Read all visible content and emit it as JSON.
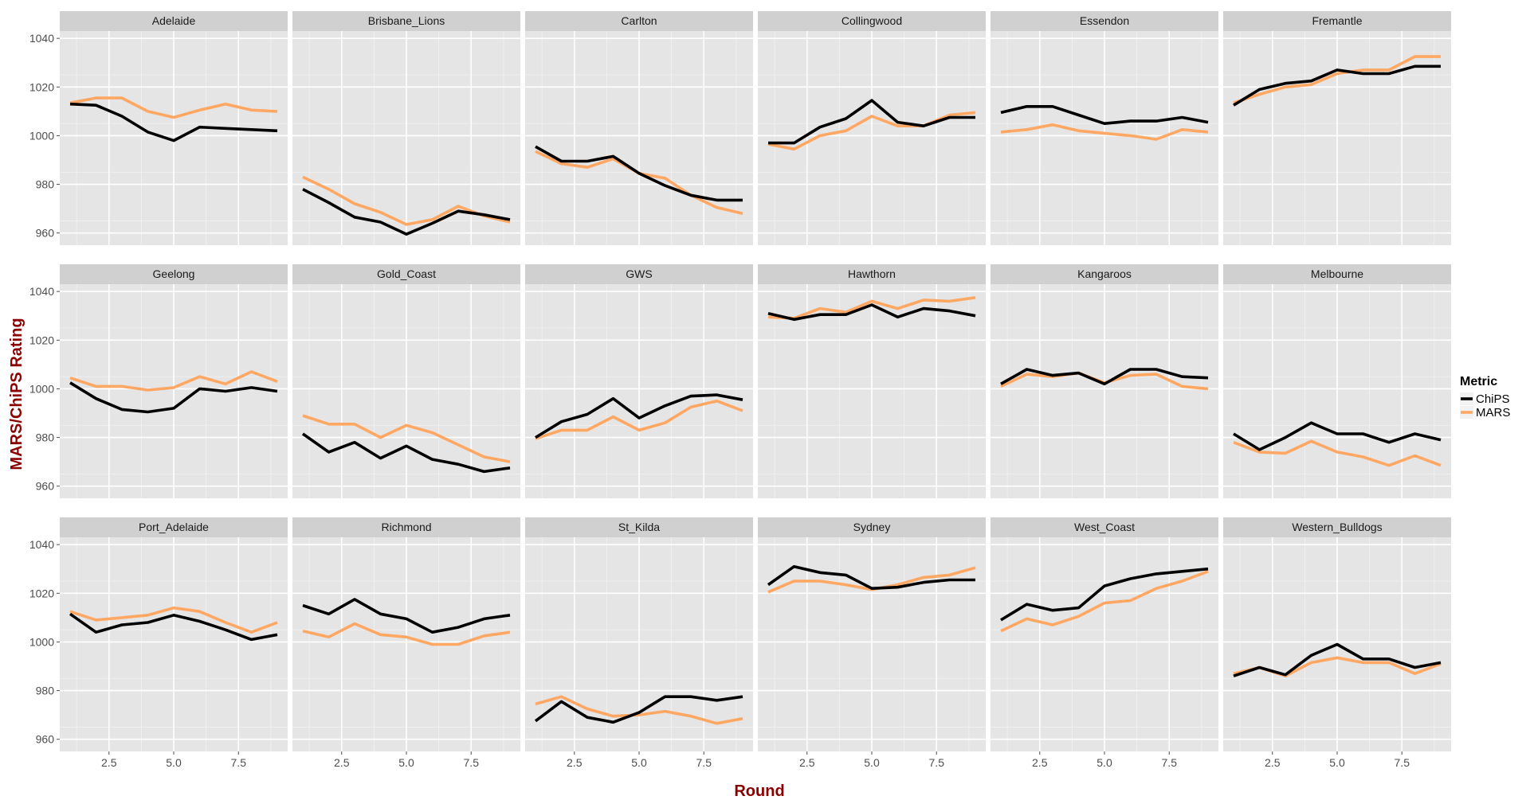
{
  "chart_data": {
    "type": "line",
    "xlabel": "Round",
    "ylabel": "MARS/ChiPS Rating",
    "x": [
      1,
      2,
      3,
      4,
      5,
      6,
      7,
      8,
      9
    ],
    "xticks": [
      "2.5",
      "5.0",
      "7.5"
    ],
    "xtick_values": [
      2.5,
      5.0,
      7.5
    ],
    "yticks": [
      "960",
      "980",
      "1000",
      "1020",
      "1040"
    ],
    "ytick_values": [
      960,
      980,
      1000,
      1020,
      1040
    ],
    "ylim": [
      955,
      1043
    ],
    "xlim": [
      0.6,
      9.4
    ],
    "grid": true,
    "legend": {
      "title": "Metric",
      "placement": "right",
      "entries": [
        {
          "name": "ChiPS",
          "color": "#000000"
        },
        {
          "name": "MARS",
          "color": "#ffa763"
        }
      ]
    },
    "colors": {
      "ChiPS": "#000000",
      "MARS": "#ffa763",
      "panel_bg": "#e5e5e5",
      "strip_bg": "#d0d0d0",
      "axis_title": "#8b0000"
    },
    "panels": [
      {
        "team": "Adelaide",
        "ChiPS": [
          1013,
          1012.5,
          1008,
          1001.5,
          998,
          1003.5,
          1003,
          1002.5,
          1002
        ],
        "MARS": [
          1013.5,
          1015.5,
          1015.5,
          1010,
          1007.5,
          1010.5,
          1013,
          1010.5,
          1010
        ]
      },
      {
        "team": "Brisbane_Lions",
        "ChiPS": [
          978,
          972.5,
          966.5,
          964.5,
          959.5,
          964,
          969,
          967.5,
          965.5
        ],
        "MARS": [
          983,
          978,
          972,
          968.5,
          963.5,
          965.5,
          971,
          967,
          964.5
        ]
      },
      {
        "team": "Carlton",
        "ChiPS": [
          995.5,
          989.5,
          989.5,
          991.5,
          984.5,
          979.5,
          975.5,
          973.5,
          973.5
        ],
        "MARS": [
          993.5,
          988.5,
          987,
          990.5,
          984.5,
          982.5,
          975.5,
          970.5,
          968
        ]
      },
      {
        "team": "Collingwood",
        "ChiPS": [
          997,
          997,
          1003.5,
          1007,
          1014.5,
          1005.5,
          1004,
          1007.5,
          1007.5
        ],
        "MARS": [
          996.5,
          994.5,
          1000,
          1002,
          1008,
          1004,
          1004,
          1008.5,
          1009.5
        ]
      },
      {
        "team": "Essendon",
        "ChiPS": [
          1009.5,
          1012,
          1012,
          1008.5,
          1005,
          1006,
          1006,
          1007.5,
          1005.5
        ],
        "MARS": [
          1001.5,
          1002.5,
          1004.5,
          1002,
          1001,
          1000,
          998.5,
          1002.5,
          1001.5
        ]
      },
      {
        "team": "Fremantle",
        "ChiPS": [
          1012.5,
          1019,
          1021.5,
          1022.5,
          1027,
          1025.5,
          1025.5,
          1028.5,
          1028.5
        ],
        "MARS": [
          1013.5,
          1017,
          1020,
          1021,
          1025.5,
          1027,
          1027,
          1032.5,
          1032.5
        ]
      },
      {
        "team": "Geelong",
        "ChiPS": [
          1002.5,
          996,
          991.5,
          990.5,
          992,
          1000,
          999,
          1000.5,
          999
        ],
        "MARS": [
          1004.5,
          1001,
          1001,
          999.5,
          1000.5,
          1005,
          1002,
          1007,
          1003
        ]
      },
      {
        "team": "Gold_Coast",
        "ChiPS": [
          981.5,
          974,
          978,
          971.5,
          976.5,
          971,
          969,
          966,
          967.5
        ],
        "MARS": [
          989,
          985.5,
          985.5,
          980,
          985,
          982,
          977,
          972,
          970
        ]
      },
      {
        "team": "GWS",
        "ChiPS": [
          980,
          986.5,
          989.5,
          996,
          988,
          993,
          997,
          997.5,
          995.5
        ],
        "MARS": [
          979.5,
          983,
          983,
          988.5,
          983,
          986,
          992.5,
          995,
          991
        ]
      },
      {
        "team": "Hawthorn",
        "ChiPS": [
          1031,
          1028.5,
          1030.5,
          1030.5,
          1034.5,
          1029.5,
          1033,
          1032,
          1030
        ],
        "MARS": [
          1029.5,
          1029,
          1033,
          1031.5,
          1036,
          1033,
          1036.5,
          1036,
          1037.5
        ]
      },
      {
        "team": "Kangaroos",
        "ChiPS": [
          1002,
          1008,
          1005.5,
          1006.5,
          1002,
          1008,
          1008,
          1005,
          1004.5
        ],
        "MARS": [
          1001,
          1006,
          1005,
          1006.5,
          1002.5,
          1005.5,
          1006,
          1001,
          1000
        ]
      },
      {
        "team": "Melbourne",
        "ChiPS": [
          981.5,
          975,
          980,
          986,
          981.5,
          981.5,
          978,
          981.5,
          979
        ],
        "MARS": [
          978,
          974,
          973.5,
          978.5,
          974,
          972,
          968.5,
          972.5,
          968.5
        ]
      },
      {
        "team": "Port_Adelaide",
        "ChiPS": [
          1011.5,
          1004,
          1007,
          1008,
          1011,
          1008.5,
          1005,
          1001,
          1003
        ],
        "MARS": [
          1012.5,
          1009,
          1010,
          1011,
          1014,
          1012.5,
          1008,
          1004,
          1008
        ]
      },
      {
        "team": "Richmond",
        "ChiPS": [
          1015,
          1011.5,
          1017.5,
          1011.5,
          1009.5,
          1004,
          1006,
          1009.5,
          1011
        ],
        "MARS": [
          1004.5,
          1002,
          1007.5,
          1003,
          1002,
          999,
          999,
          1002.5,
          1004
        ]
      },
      {
        "team": "St_Kilda",
        "ChiPS": [
          967.5,
          975.5,
          969,
          967,
          971,
          977.5,
          977.5,
          976,
          977.5
        ],
        "MARS": [
          974.5,
          977.5,
          972.5,
          969.5,
          970,
          971.5,
          969.5,
          966.5,
          968.5
        ]
      },
      {
        "team": "Sydney",
        "ChiPS": [
          1023.5,
          1031,
          1028.5,
          1027.5,
          1022,
          1022.5,
          1024.5,
          1025.5,
          1025.5
        ],
        "MARS": [
          1020.5,
          1025,
          1025,
          1023.5,
          1021.5,
          1023.5,
          1026.5,
          1027.5,
          1030.5
        ]
      },
      {
        "team": "West_Coast",
        "ChiPS": [
          1009,
          1015.5,
          1013,
          1014,
          1023,
          1026,
          1028,
          1029,
          1030
        ],
        "MARS": [
          1004.5,
          1009.5,
          1007,
          1010.5,
          1016,
          1017,
          1022,
          1025,
          1029
        ]
      },
      {
        "team": "Western_Bulldogs",
        "ChiPS": [
          986,
          989.5,
          986.5,
          994.5,
          999,
          993,
          993,
          989.5,
          991.5
        ],
        "MARS": [
          987,
          989.5,
          986,
          991.5,
          993.5,
          991.5,
          991.5,
          987,
          991
        ]
      }
    ]
  }
}
